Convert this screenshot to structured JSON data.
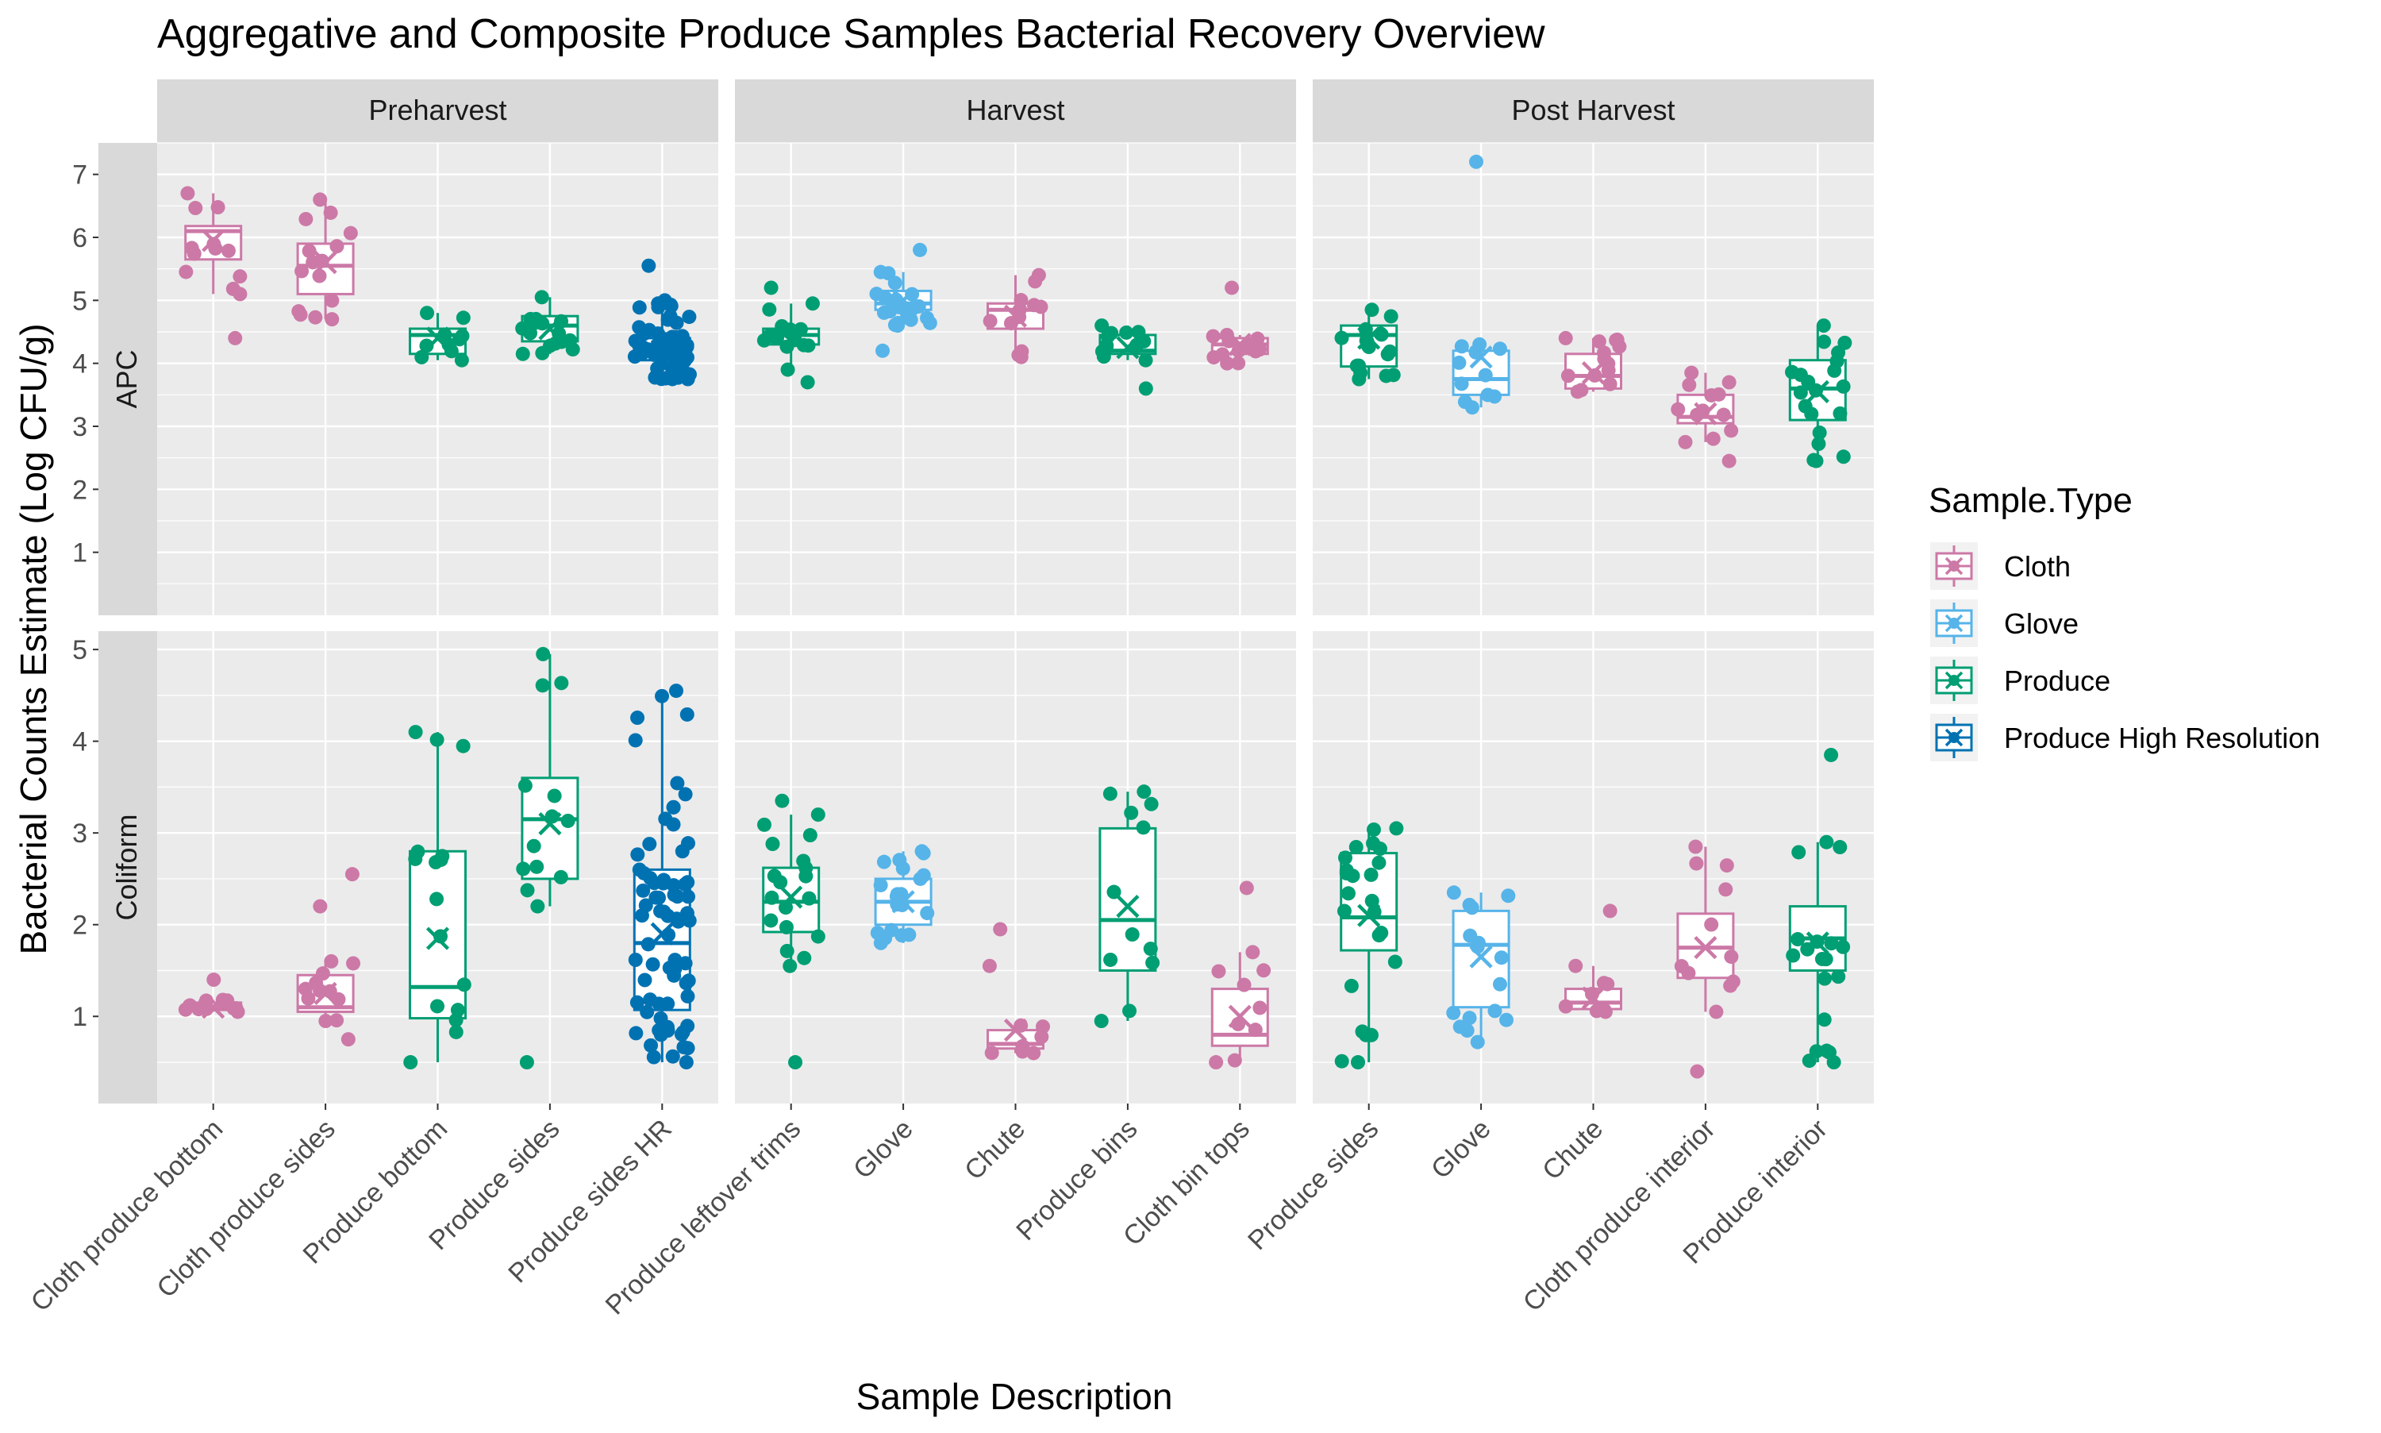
{
  "chart_data": {
    "type": "box",
    "title": "Aggregative and Composite Produce Samples Bacterial Recovery Overview",
    "xlabel": "Sample Description",
    "ylabel": "Bacterial Counts Estimate (Log CFU/g)",
    "facet_columns": [
      "Preharvest",
      "Harvest",
      "Post Harvest"
    ],
    "facet_rows": [
      {
        "label": "APC",
        "ylim": [
          0,
          7.5
        ],
        "ticks": [
          "1",
          "2",
          "3",
          "4",
          "5",
          "6",
          "7"
        ]
      },
      {
        "label": "Coliform",
        "ylim": [
          0.05,
          5.2
        ],
        "ticks": [
          "1",
          "2",
          "3",
          "4",
          "5"
        ]
      }
    ],
    "categories": [
      [
        "Cloth produce bottom",
        "Cloth produce sides",
        "Produce bottom",
        "Produce sides",
        "Produce sides HR"
      ],
      [
        "Produce leftover trims",
        "Glove",
        "Chute",
        "Produce bins",
        "Cloth bin tops"
      ],
      [
        "Produce sides",
        "Glove",
        "Chute",
        "Cloth produce interior",
        "Produce interior"
      ]
    ],
    "grid": true,
    "legend": {
      "title": "Sample.Type",
      "position": "right",
      "items": [
        {
          "label": "Cloth",
          "color": "#CC79A7"
        },
        {
          "label": "Glove",
          "color": "#56B4E9"
        },
        {
          "label": "Produce",
          "color": "#009E73"
        },
        {
          "label": "Produce High Resolution",
          "color": "#0072B2"
        }
      ]
    },
    "boxes": [
      {
        "row": 0,
        "col": 0,
        "cat": 0,
        "type": "Cloth",
        "min": 5.1,
        "q1": 5.65,
        "median": 6.1,
        "q3": 6.18,
        "max": 6.7,
        "mean": 5.95,
        "outliers": [
          4.4
        ],
        "n": 11
      },
      {
        "row": 0,
        "col": 0,
        "cat": 1,
        "type": "Cloth",
        "min": 4.7,
        "q1": 5.1,
        "median": 5.55,
        "q3": 5.9,
        "max": 6.6,
        "mean": 5.6,
        "outliers": [],
        "n": 13
      },
      {
        "row": 0,
        "col": 0,
        "cat": 2,
        "type": "Produce",
        "min": 4.05,
        "q1": 4.15,
        "median": 4.45,
        "q3": 4.55,
        "max": 4.8,
        "mean": 4.4,
        "outliers": [],
        "n": 8
      },
      {
        "row": 0,
        "col": 0,
        "cat": 3,
        "type": "Produce",
        "min": 4.15,
        "q1": 4.35,
        "median": 4.6,
        "q3": 4.75,
        "max": 5.05,
        "mean": 4.55,
        "outliers": [],
        "n": 14
      },
      {
        "row": 0,
        "col": 0,
        "cat": 4,
        "type": "Produce High Resolution",
        "min": 3.75,
        "q1": 4.05,
        "median": 4.25,
        "q3": 4.4,
        "max": 4.95,
        "mean": 4.2,
        "outliers": [
          5.0,
          5.55
        ],
        "n": 70
      },
      {
        "row": 0,
        "col": 1,
        "cat": 0,
        "type": "Produce",
        "min": 3.9,
        "q1": 4.3,
        "median": 4.45,
        "q3": 4.55,
        "max": 4.95,
        "mean": 4.4,
        "outliers": [
          5.2,
          3.7
        ],
        "n": 16
      },
      {
        "row": 0,
        "col": 1,
        "cat": 1,
        "type": "Glove",
        "min": 4.6,
        "q1": 4.85,
        "median": 4.95,
        "q3": 5.15,
        "max": 5.45,
        "mean": 5.0,
        "outliers": [
          5.8,
          4.2
        ],
        "n": 20
      },
      {
        "row": 0,
        "col": 1,
        "cat": 2,
        "type": "Cloth",
        "min": 4.1,
        "q1": 4.55,
        "median": 4.85,
        "q3": 4.95,
        "max": 5.4,
        "mean": 4.75,
        "outliers": [],
        "n": 10
      },
      {
        "row": 0,
        "col": 1,
        "cat": 3,
        "type": "Produce",
        "min": 4.05,
        "q1": 4.15,
        "median": 4.2,
        "q3": 4.45,
        "max": 4.6,
        "mean": 4.25,
        "outliers": [
          3.6
        ],
        "n": 12
      },
      {
        "row": 0,
        "col": 1,
        "cat": 4,
        "type": "Cloth",
        "min": 4.0,
        "q1": 4.15,
        "median": 4.3,
        "q3": 4.4,
        "max": 4.45,
        "mean": 4.3,
        "outliers": [
          5.2
        ],
        "n": 12
      },
      {
        "row": 0,
        "col": 2,
        "cat": 0,
        "type": "Produce",
        "min": 3.75,
        "q1": 3.95,
        "median": 4.45,
        "q3": 4.6,
        "max": 4.85,
        "mean": 4.4,
        "outliers": [],
        "n": 16
      },
      {
        "row": 0,
        "col": 2,
        "cat": 1,
        "type": "Glove",
        "min": 3.3,
        "q1": 3.5,
        "median": 3.75,
        "q3": 4.2,
        "max": 4.3,
        "mean": 4.1,
        "outliers": [
          7.2
        ],
        "n": 10
      },
      {
        "row": 0,
        "col": 2,
        "cat": 2,
        "type": "Cloth",
        "min": 3.55,
        "q1": 3.6,
        "median": 3.8,
        "q3": 4.15,
        "max": 4.4,
        "mean": 3.85,
        "outliers": [],
        "n": 12
      },
      {
        "row": 0,
        "col": 2,
        "cat": 3,
        "type": "Cloth",
        "min": 2.75,
        "q1": 3.05,
        "median": 3.15,
        "q3": 3.5,
        "max": 3.85,
        "mean": 3.2,
        "outliers": [
          2.45
        ],
        "n": 11
      },
      {
        "row": 0,
        "col": 2,
        "cat": 4,
        "type": "Produce",
        "min": 2.45,
        "q1": 3.1,
        "median": 3.6,
        "q3": 4.05,
        "max": 4.6,
        "mean": 3.55,
        "outliers": [],
        "n": 18
      },
      {
        "row": 1,
        "col": 0,
        "cat": 0,
        "type": "Cloth",
        "min": 1.05,
        "q1": 1.07,
        "median": 1.1,
        "q3": 1.15,
        "max": 1.18,
        "mean": 1.1,
        "outliers": [
          1.4
        ],
        "n": 12
      },
      {
        "row": 1,
        "col": 0,
        "cat": 1,
        "type": "Cloth",
        "min": 0.95,
        "q1": 1.05,
        "median": 1.1,
        "q3": 1.45,
        "max": 1.6,
        "mean": 1.25,
        "outliers": [
          2.55,
          2.2,
          0.75
        ],
        "n": 12
      },
      {
        "row": 1,
        "col": 0,
        "cat": 2,
        "type": "Produce",
        "min": 0.5,
        "q1": 0.98,
        "median": 1.32,
        "q3": 2.8,
        "max": 4.1,
        "mean": 1.85,
        "outliers": [],
        "n": 14
      },
      {
        "row": 1,
        "col": 0,
        "cat": 3,
        "type": "Produce",
        "min": 2.2,
        "q1": 2.5,
        "median": 3.15,
        "q3": 3.6,
        "max": 4.95,
        "mean": 3.1,
        "outliers": [
          0.5
        ],
        "n": 12
      },
      {
        "row": 1,
        "col": 0,
        "cat": 4,
        "type": "Produce High Resolution",
        "min": 0.5,
        "q1": 1.07,
        "median": 1.8,
        "q3": 2.6,
        "max": 4.55,
        "mean": 1.9,
        "outliers": [],
        "n": 70
      },
      {
        "row": 1,
        "col": 1,
        "cat": 0,
        "type": "Produce",
        "min": 1.55,
        "q1": 1.92,
        "median": 2.25,
        "q3": 2.62,
        "max": 3.2,
        "mean": 2.3,
        "outliers": [
          0.5,
          3.35
        ],
        "n": 18
      },
      {
        "row": 1,
        "col": 1,
        "cat": 1,
        "type": "Glove",
        "min": 1.8,
        "q1": 2.0,
        "median": 2.25,
        "q3": 2.5,
        "max": 2.8,
        "mean": 2.25,
        "outliers": [],
        "n": 20
      },
      {
        "row": 1,
        "col": 1,
        "cat": 2,
        "type": "Cloth",
        "min": 0.6,
        "q1": 0.65,
        "median": 0.7,
        "q3": 0.85,
        "max": 0.9,
        "mean": 0.85,
        "outliers": [
          1.95,
          1.55
        ],
        "n": 7
      },
      {
        "row": 1,
        "col": 1,
        "cat": 3,
        "type": "Produce",
        "min": 0.95,
        "q1": 1.5,
        "median": 2.05,
        "q3": 3.05,
        "max": 3.45,
        "mean": 2.2,
        "outliers": [],
        "n": 10
      },
      {
        "row": 1,
        "col": 1,
        "cat": 4,
        "type": "Cloth",
        "min": 0.5,
        "q1": 0.68,
        "median": 0.8,
        "q3": 1.3,
        "max": 1.7,
        "mean": 1.0,
        "outliers": [
          2.4
        ],
        "n": 8
      },
      {
        "row": 1,
        "col": 2,
        "cat": 0,
        "type": "Produce",
        "min": 0.5,
        "q1": 1.72,
        "median": 2.08,
        "q3": 2.78,
        "max": 3.05,
        "mean": 2.1,
        "outliers": [],
        "n": 22
      },
      {
        "row": 1,
        "col": 2,
        "cat": 1,
        "type": "Glove",
        "min": 0.72,
        "q1": 1.1,
        "median": 1.78,
        "q3": 2.15,
        "max": 2.35,
        "mean": 1.65,
        "outliers": [],
        "n": 14
      },
      {
        "row": 1,
        "col": 2,
        "cat": 2,
        "type": "Cloth",
        "min": 1.05,
        "q1": 1.08,
        "median": 1.15,
        "q3": 1.3,
        "max": 1.55,
        "mean": 1.2,
        "outliers": [
          2.15
        ],
        "n": 8
      },
      {
        "row": 1,
        "col": 2,
        "cat": 3,
        "type": "Cloth",
        "min": 1.05,
        "q1": 1.42,
        "median": 1.75,
        "q3": 2.12,
        "max": 2.85,
        "mean": 1.75,
        "outliers": [
          0.4
        ],
        "n": 10
      },
      {
        "row": 1,
        "col": 2,
        "cat": 4,
        "type": "Produce",
        "min": 0.5,
        "q1": 1.5,
        "median": 1.85,
        "q3": 2.2,
        "max": 2.9,
        "mean": 1.8,
        "outliers": [
          3.85
        ],
        "n": 18
      }
    ]
  }
}
